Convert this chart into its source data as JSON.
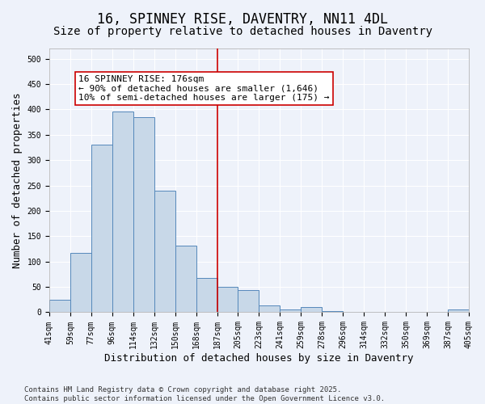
{
  "title": "16, SPINNEY RISE, DAVENTRY, NN11 4DL",
  "subtitle": "Size of property relative to detached houses in Daventry",
  "xlabel": "Distribution of detached houses by size in Daventry",
  "ylabel": "Number of detached properties",
  "bin_labels": [
    "41sqm",
    "59sqm",
    "77sqm",
    "96sqm",
    "114sqm",
    "132sqm",
    "150sqm",
    "168sqm",
    "187sqm",
    "205sqm",
    "223sqm",
    "241sqm",
    "259sqm",
    "278sqm",
    "296sqm",
    "314sqm",
    "332sqm",
    "350sqm",
    "369sqm",
    "387sqm",
    "405sqm"
  ],
  "values": [
    25,
    117,
    330,
    395,
    385,
    240,
    132,
    68,
    50,
    44,
    13,
    6,
    11,
    3,
    1,
    1,
    0,
    0,
    1,
    5
  ],
  "bar_color": "#c8d8e8",
  "bar_edge_color": "#5588bb",
  "vline_x": 7.5,
  "vline_color": "#cc0000",
  "annotation_text": "16 SPINNEY RISE: 176sqm\n← 90% of detached houses are smaller (1,646)\n10% of semi-detached houses are larger (175) →",
  "annotation_box_color": "#ffffff",
  "annotation_box_edge": "#cc0000",
  "ylim": [
    0,
    520
  ],
  "yticks": [
    0,
    50,
    100,
    150,
    200,
    250,
    300,
    350,
    400,
    450,
    500
  ],
  "background_color": "#eef2fa",
  "grid_color": "#ffffff",
  "footnote": "Contains HM Land Registry data © Crown copyright and database right 2025.\nContains public sector information licensed under the Open Government Licence v3.0.",
  "title_fontsize": 12,
  "subtitle_fontsize": 10,
  "xlabel_fontsize": 9,
  "ylabel_fontsize": 9,
  "tick_fontsize": 7,
  "annotation_fontsize": 8,
  "footnote_fontsize": 6.5
}
